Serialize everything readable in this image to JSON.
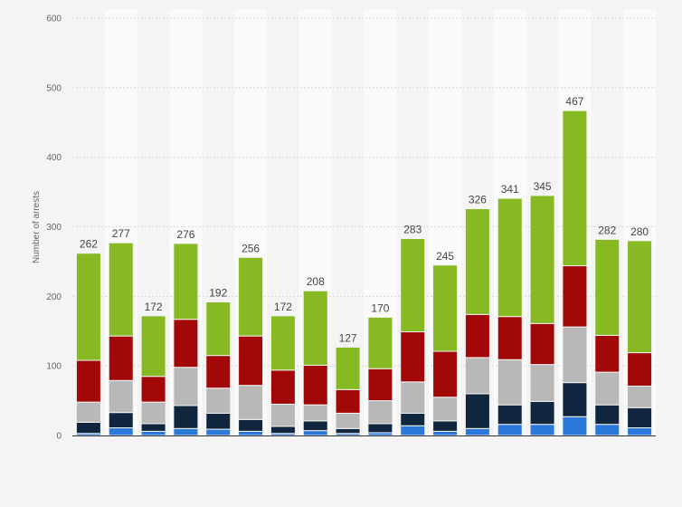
{
  "chart_data": {
    "type": "bar",
    "stacked": true,
    "title": "",
    "xlabel": "",
    "ylabel": "Number of arrests",
    "ylim": [
      0,
      600
    ],
    "yticks": [
      0,
      100,
      200,
      300,
      400,
      500,
      600
    ],
    "grid": true,
    "legend": "none",
    "totals": [
      262,
      277,
      172,
      276,
      192,
      256,
      172,
      208,
      127,
      170,
      283,
      245,
      326,
      341,
      345,
      467,
      282,
      280
    ],
    "series": [
      {
        "color": "#2a78d9",
        "values": [
          3,
          11,
          6,
          10,
          9,
          6,
          3,
          7,
          3,
          4,
          14,
          6,
          10,
          16,
          16,
          27,
          16,
          11
        ]
      },
      {
        "color": "#10263e",
        "values": [
          16,
          22,
          11,
          33,
          23,
          17,
          10,
          14,
          7,
          13,
          18,
          15,
          50,
          28,
          33,
          49,
          28,
          29
        ]
      },
      {
        "color": "#b8b8b8",
        "values": [
          29,
          46,
          31,
          55,
          36,
          49,
          32,
          23,
          22,
          33,
          45,
          34,
          52,
          65,
          53,
          80,
          47,
          31
        ]
      },
      {
        "color": "#a30808",
        "values": [
          60,
          64,
          37,
          69,
          47,
          71,
          49,
          57,
          34,
          46,
          72,
          66,
          62,
          62,
          59,
          88,
          53,
          48
        ]
      },
      {
        "color": "#87b922",
        "values": [
          154,
          134,
          87,
          109,
          77,
          113,
          78,
          107,
          61,
          74,
          134,
          124,
          152,
          170,
          184,
          223,
          138,
          161
        ]
      }
    ]
  }
}
